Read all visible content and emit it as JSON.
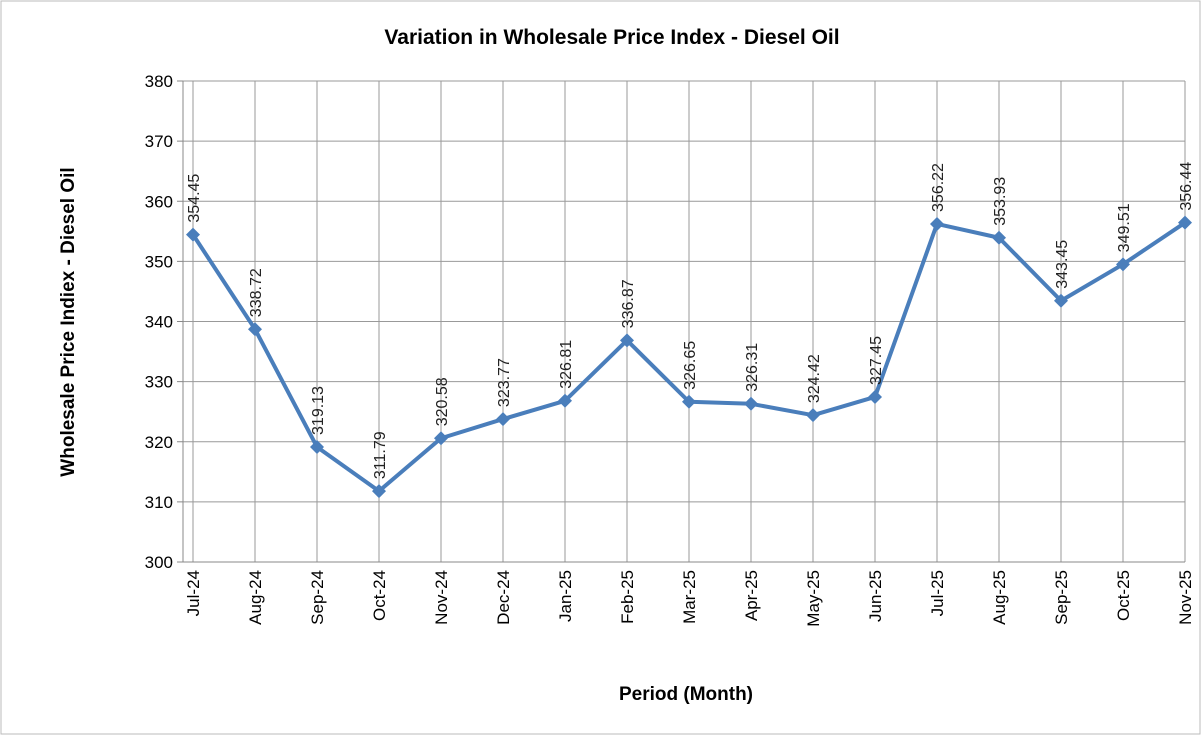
{
  "chart_data": {
    "type": "line",
    "title": "Variation in Wholesale Price Index - Diesel Oil",
    "x_label": "Period (Month)",
    "y_label": "Wholesale Price Indiex - Diesel Oil",
    "categories": [
      "Jul-24",
      "Aug-24",
      "Sep-24",
      "Oct-24",
      "Nov-24",
      "Dec-24",
      "Jan-25",
      "Feb-25",
      "Mar-25",
      "Apr-25",
      "May-25",
      "Jun-25",
      "Jul-25",
      "Aug-25",
      "Sep-25",
      "Oct-25",
      "Nov-25"
    ],
    "series": [
      {
        "name": "Wholesale Price Index - Diesel Oil",
        "color": "#4a7ebb",
        "values": [
          354.45,
          338.72,
          319.13,
          311.79,
          320.58,
          323.77,
          326.81,
          336.87,
          326.65,
          326.31,
          324.42,
          327.45,
          356.22,
          353.93,
          343.45,
          349.51,
          356.44
        ]
      }
    ],
    "ylim": [
      300,
      380
    ],
    "yticks": [
      300,
      310,
      320,
      330,
      340,
      350,
      360,
      370,
      380
    ],
    "grid": true
  }
}
